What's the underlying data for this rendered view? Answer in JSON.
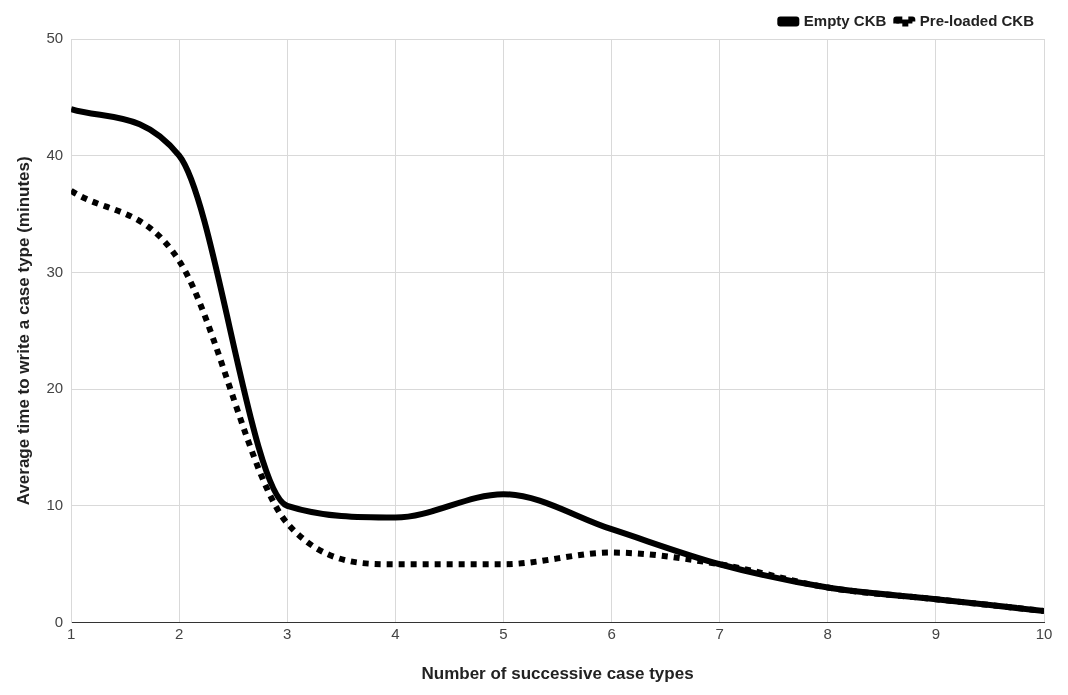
{
  "chart_data": {
    "type": "line",
    "xlabel": "Number of successive case types",
    "ylabel": "Average time to write a case type (minutes)",
    "x": [
      1,
      2,
      3,
      4,
      5,
      6,
      7,
      8,
      9,
      10
    ],
    "series": [
      {
        "name": "Empty CKB",
        "color": "#000000",
        "line_style": "solid",
        "values": [
          44,
          40,
          10,
          9,
          11,
          8,
          5,
          3,
          2,
          1
        ]
      },
      {
        "name": "Pre-loaded CKB",
        "color": "#000000",
        "line_style": "dotted",
        "values": [
          37,
          31,
          8.5,
          5,
          5,
          6,
          5,
          3,
          2,
          1
        ]
      }
    ],
    "xlim": [
      1,
      10
    ],
    "xticks": [
      1,
      2,
      3,
      4,
      5,
      6,
      7,
      8,
      9,
      10
    ],
    "ylim": [
      0,
      50
    ],
    "yticks": [
      0,
      10,
      20,
      30,
      40,
      50
    ],
    "grid": true,
    "legend": "top right",
    "marker": "none"
  }
}
